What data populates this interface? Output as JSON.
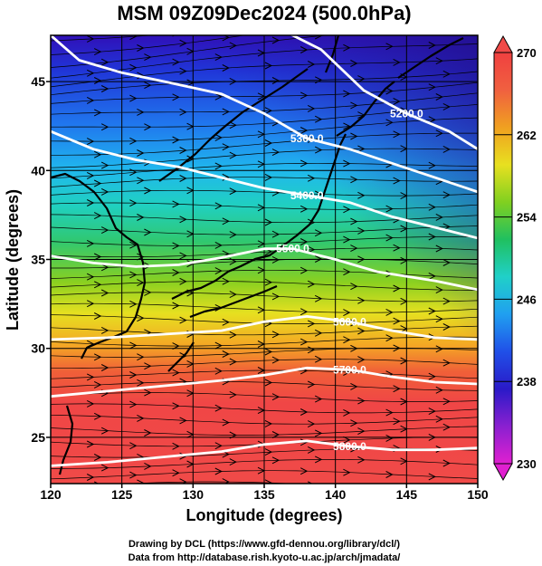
{
  "chart_data": {
    "type": "heatmap",
    "title": "MSM 09Z09Dec2024 (500.0hPa)",
    "xlabel": "Longitude (degrees)",
    "ylabel": "Latitude  (degrees)",
    "xlim": [
      120,
      150
    ],
    "ylim": [
      22.4,
      47.6
    ],
    "x_ticks": [
      "120",
      "125",
      "130",
      "135",
      "140",
      "145",
      "150"
    ],
    "y_ticks": [
      "25",
      "30",
      "35",
      "40",
      "45"
    ],
    "colorbar": {
      "range": [
        230,
        270
      ],
      "tick_labels": [
        "270",
        "262",
        "254",
        "246",
        "238",
        "230"
      ],
      "colors": [
        "#e020d0",
        "#8a20d0",
        "#2a1ac8",
        "#2050e8",
        "#20a0f0",
        "#20d0c8",
        "#20c060",
        "#80d020",
        "#e8e020",
        "#f0a020",
        "#f06040",
        "#f04040"
      ]
    },
    "contours": [
      {
        "label": "5200.0",
        "points": [
          [
            136,
            48
          ],
          [
            139,
            46.8
          ],
          [
            142,
            44.5
          ],
          [
            145,
            43.2
          ],
          [
            148,
            42.2
          ],
          [
            150,
            41.2
          ]
        ]
      },
      {
        "label": "5300.0",
        "points": [
          [
            120,
            47.6
          ],
          [
            122,
            46.2
          ],
          [
            125,
            45.5
          ],
          [
            128,
            45
          ],
          [
            132,
            44.3
          ],
          [
            135,
            43.2
          ],
          [
            138,
            41.8
          ],
          [
            141,
            41.2
          ],
          [
            144,
            40.4
          ],
          [
            147,
            39.6
          ],
          [
            150,
            38.8
          ]
        ]
      },
      {
        "label": "5400.0",
        "points": [
          [
            120,
            42.2
          ],
          [
            123,
            41.2
          ],
          [
            126,
            40.6
          ],
          [
            129,
            40.2
          ],
          [
            132,
            39.6
          ],
          [
            135,
            39
          ],
          [
            138,
            38.6
          ],
          [
            141,
            38.2
          ],
          [
            144,
            37.4
          ],
          [
            147,
            36.8
          ],
          [
            150,
            36.2
          ]
        ]
      },
      {
        "label": "5500.0",
        "points": [
          [
            120,
            35.2
          ],
          [
            123,
            34.8
          ],
          [
            126,
            34.6
          ],
          [
            129,
            34.7
          ],
          [
            132,
            35.1
          ],
          [
            135,
            35.6
          ],
          [
            137,
            35.6
          ],
          [
            140,
            35
          ],
          [
            143,
            34.3
          ],
          [
            147,
            33.8
          ],
          [
            150,
            33.3
          ]
        ]
      },
      {
        "label": "5600.0",
        "points": [
          [
            120,
            30.5
          ],
          [
            124,
            30.6
          ],
          [
            128,
            30.8
          ],
          [
            132,
            31
          ],
          [
            135,
            31.5
          ],
          [
            138,
            31.8
          ],
          [
            141,
            31.5
          ],
          [
            144,
            31
          ],
          [
            147,
            30.6
          ],
          [
            150,
            30.5
          ]
        ]
      },
      {
        "label": "5700.0",
        "points": [
          [
            120,
            27.3
          ],
          [
            124,
            27.6
          ],
          [
            128,
            27.9
          ],
          [
            132,
            28.2
          ],
          [
            135,
            28.5
          ],
          [
            138,
            28.9
          ],
          [
            141,
            28.8
          ],
          [
            144,
            28.4
          ],
          [
            147,
            28.1
          ],
          [
            150,
            28
          ]
        ]
      },
      {
        "label": "5800.0",
        "points": [
          [
            120,
            23.4
          ],
          [
            124,
            23.6
          ],
          [
            128,
            23.9
          ],
          [
            132,
            24.2
          ],
          [
            135,
            24.6
          ],
          [
            138,
            24.8
          ],
          [
            141,
            24.5
          ],
          [
            144,
            24.3
          ],
          [
            147,
            24.3
          ],
          [
            150,
            24.4
          ]
        ]
      }
    ],
    "grid": true,
    "legend": "right",
    "credits": [
      "Drawing by DCL (https://www.gfd-dennou.org/library/dcl/)",
      "Data from http://database.rish.kyoto-u.ac.jp/arch/jmadata/"
    ]
  }
}
